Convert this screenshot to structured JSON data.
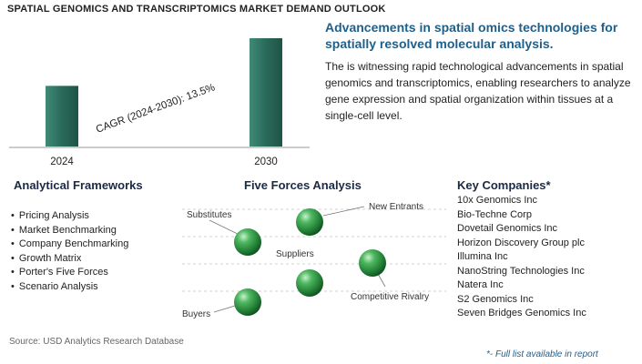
{
  "title": "SPATIAL GENOMICS AND TRANSCRIPTOMICS MARKET DEMAND OUTLOOK",
  "headline": "Advancements in spatial omics technologies for spatially resolved molecular analysis.",
  "description": "The is witnessing rapid technological advancements in spatial genomics and transcriptomics, enabling researchers to analyze gene expression and spatial organization within tissues at a single-cell level.",
  "chart_data": {
    "type": "bar",
    "categories": [
      "2024",
      "2030"
    ],
    "values": [
      0.56,
      1.0
    ],
    "annotation": "CAGR (2024-2030):  13.5%",
    "bar_color": "#2e6e5e"
  },
  "frameworks": {
    "title": "Analytical Frameworks",
    "items": [
      "Pricing Analysis",
      "Market Benchmarking",
      "Company Benchmarking",
      "Growth Matrix",
      "Porter's Five Forces",
      "Scenario Analysis"
    ]
  },
  "five_forces": {
    "title": "Five Forces Analysis",
    "labels": {
      "substitutes": "Substitutes",
      "new_entrants": "New Entrants",
      "suppliers": "Suppliers",
      "competitive_rivalry": "Competitive Rivalry",
      "buyers": "Buyers"
    },
    "ball_color": "#2a8a3e"
  },
  "companies": {
    "title": "Key Companies*",
    "items": [
      "10x Genomics Inc",
      "Bio-Techne Corp",
      "Dovetail Genomics Inc",
      "Horizon Discovery Group plc",
      "Illumina Inc",
      "NanoString Technologies Inc",
      "Natera Inc",
      "S2 Genomics Inc",
      "Seven Bridges Genomics Inc"
    ]
  },
  "source": "Source: USD Analytics Research Database",
  "footnote": "*- Full list available in report"
}
